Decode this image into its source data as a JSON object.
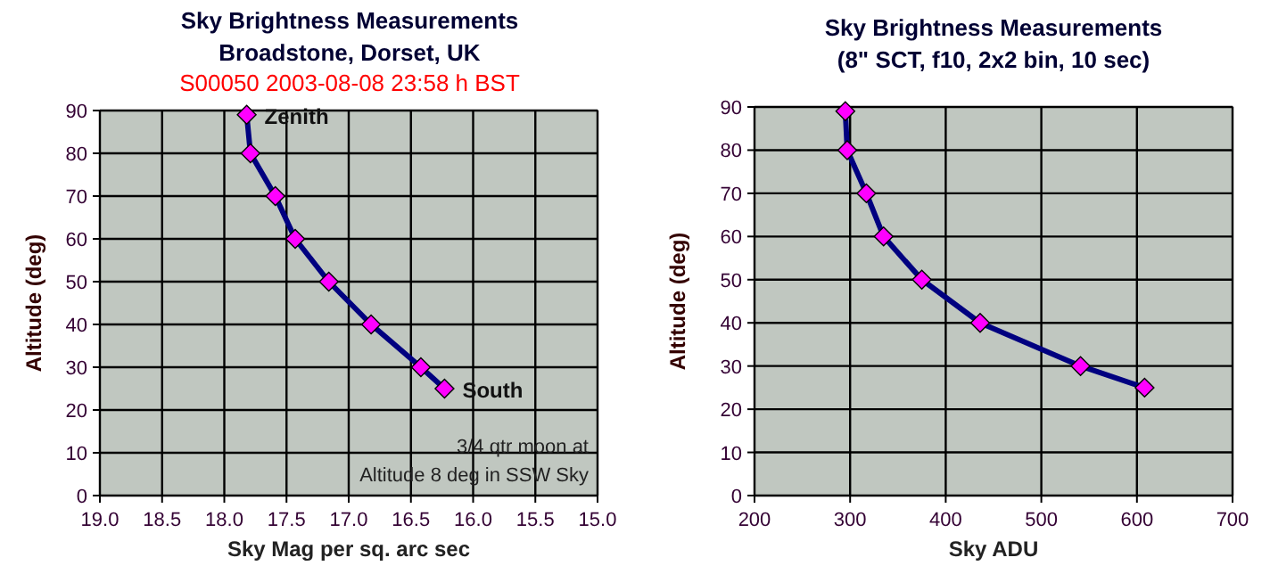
{
  "chart_data": [
    {
      "type": "line",
      "title": "Sky Brightness Measurements",
      "subtitle": "Broadstone, Dorset, UK",
      "xlabel": "Sky Mag per sq. arc sec",
      "ylabel": "Altitude (deg)",
      "annotations": [
        "S00050  2003-08-08    23:58 h BST",
        {
          "text": "Zenith",
          "x": 17.82,
          "y": 89
        },
        {
          "text": "South",
          "x": 16.23,
          "y": 25
        },
        "3/4 qtr moon at\nAltitude 8 deg in SSW Sky"
      ],
      "x": [
        17.82,
        17.79,
        17.59,
        17.43,
        17.16,
        16.82,
        16.42,
        16.23
      ],
      "series": [
        {
          "color": "#000080",
          "values": [
            89,
            80,
            70,
            60,
            50,
            40,
            30,
            25
          ]
        }
      ],
      "xlim": [
        19,
        15
      ],
      "xticks": [
        {
          "value": 19,
          "label": "19.0"
        },
        {
          "value": 18.5,
          "label": "18.5"
        },
        {
          "value": 18,
          "label": "18.0"
        },
        {
          "value": 17.5,
          "label": "17.5"
        },
        {
          "value": 17,
          "label": "17.0"
        },
        {
          "value": 16.5,
          "label": "16.5"
        },
        {
          "value": 16,
          "label": "16.0"
        },
        {
          "value": 15.5,
          "label": "15.5"
        },
        {
          "value": 15,
          "label": "15.0"
        }
      ],
      "ylim": [
        0,
        90
      ],
      "yticks": [
        0,
        10,
        20,
        30,
        40,
        50,
        60,
        70,
        80,
        90
      ],
      "grid": true,
      "marker": "diamond"
    },
    {
      "type": "line",
      "title": "Sky Brightness Measurements",
      "subtitle": "(8\" SCT, f10, 2x2 bin, 10 sec)",
      "xlabel": "Sky ADU",
      "ylabel": "Altitude (deg)",
      "x": [
        295,
        297,
        317,
        335,
        375,
        436,
        541,
        608
      ],
      "series": [
        {
          "color": "#000080",
          "values": [
            89,
            80,
            70,
            60,
            50,
            40,
            30,
            25
          ]
        }
      ],
      "xlim": [
        200,
        700
      ],
      "xticks": [
        200,
        300,
        400,
        500,
        600,
        700
      ],
      "ylim": [
        0,
        90
      ],
      "yticks": [
        0,
        10,
        20,
        30,
        40,
        50,
        60,
        70,
        80,
        90
      ],
      "grid": true,
      "marker": "diamond"
    }
  ]
}
